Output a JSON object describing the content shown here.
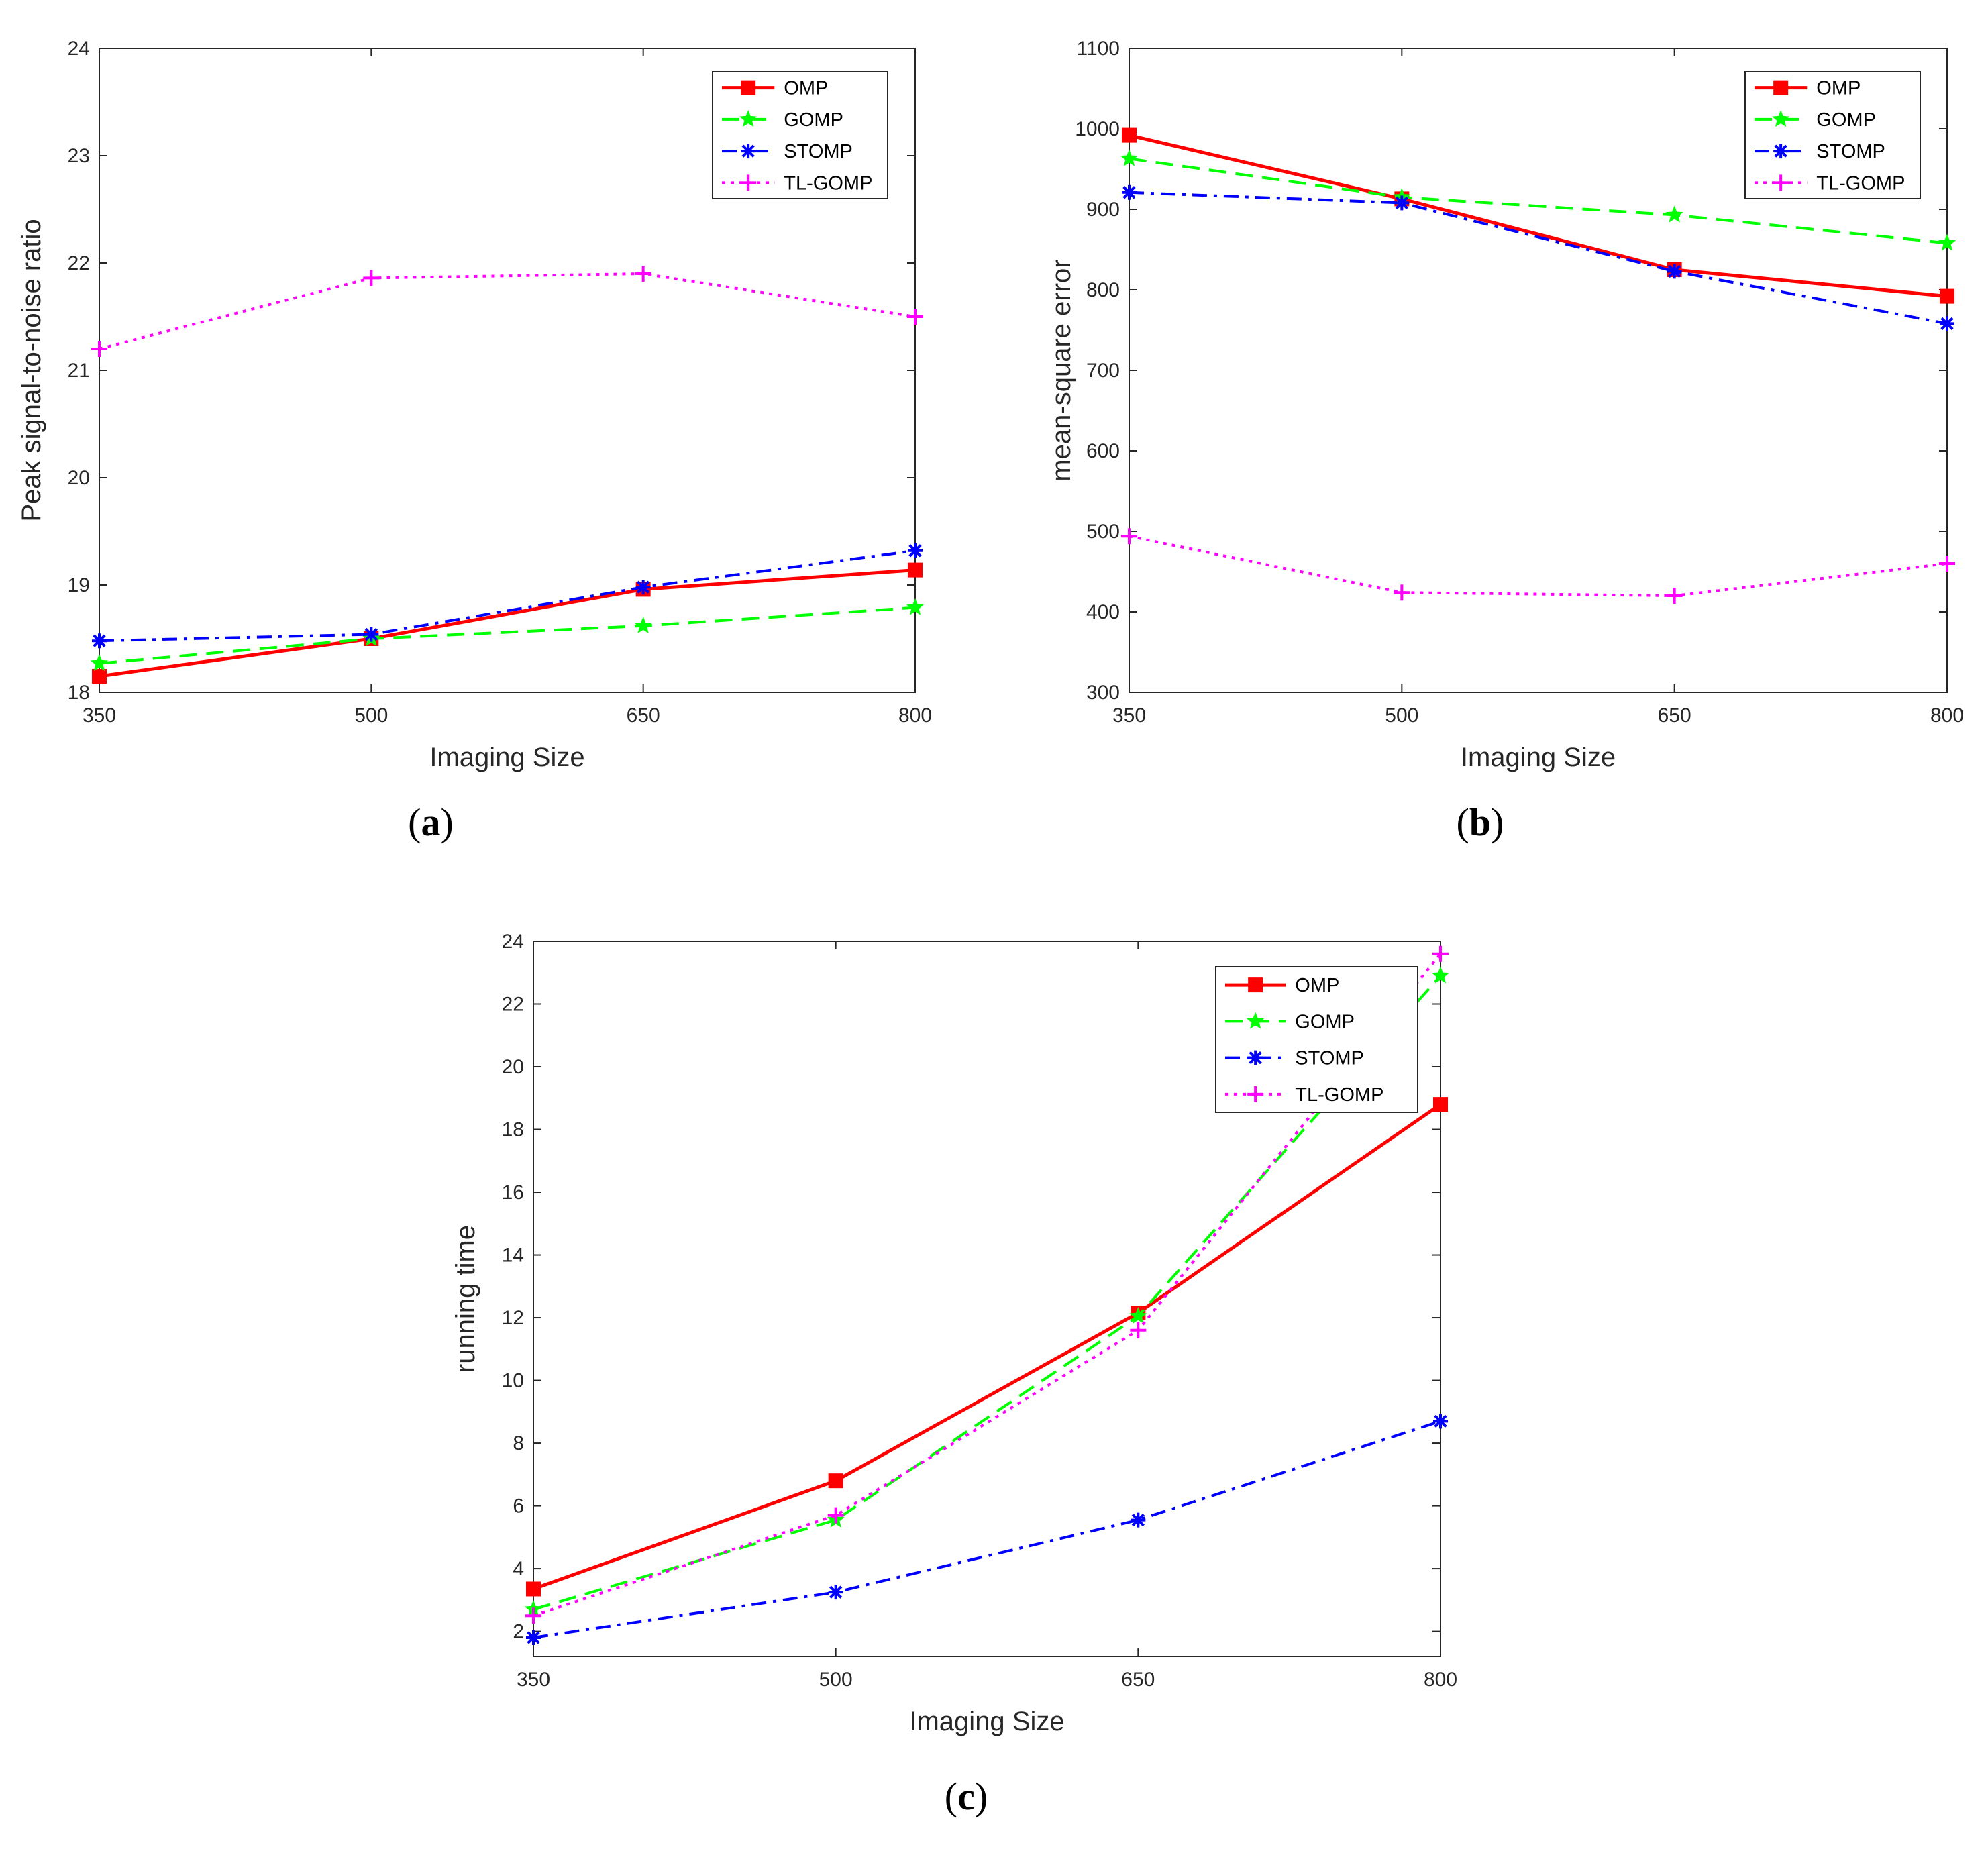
{
  "chart_data": [
    {
      "type": "line",
      "panel": "a",
      "xlabel": "Imaging Size",
      "ylabel": "Peak signal-to-noise ratio",
      "x": [
        350,
        500,
        650,
        800
      ],
      "xlim": [
        350,
        800
      ],
      "ylim": [
        18,
        24
      ],
      "xticks": [
        "350",
        "500",
        "650",
        "800"
      ],
      "yticks": [
        "18",
        "19",
        "20",
        "21",
        "22",
        "23",
        "24"
      ],
      "legend_position": "top-right",
      "series": [
        {
          "name": "OMP",
          "color": "#ff0000",
          "marker": "square",
          "style": "solid",
          "values": [
            18.15,
            18.5,
            18.96,
            19.14
          ]
        },
        {
          "name": "GOMP",
          "color": "#00ff00",
          "marker": "star",
          "style": "dashed",
          "values": [
            18.27,
            18.5,
            18.62,
            18.79
          ]
        },
        {
          "name": "STOMP",
          "color": "#0000ff",
          "marker": "asterisk",
          "style": "dashdot",
          "values": [
            18.48,
            18.54,
            18.98,
            19.32
          ]
        },
        {
          "name": "TL-GOMP",
          "color": "#ff00ff",
          "marker": "plus",
          "style": "dotted",
          "values": [
            21.2,
            21.86,
            21.9,
            21.5
          ]
        }
      ]
    },
    {
      "type": "line",
      "panel": "b",
      "xlabel": "Imaging Size",
      "ylabel": "mean-square error",
      "x": [
        350,
        500,
        650,
        800
      ],
      "xlim": [
        350,
        800
      ],
      "ylim": [
        300,
        1100
      ],
      "xticks": [
        "350",
        "500",
        "650",
        "800"
      ],
      "yticks": [
        "300",
        "400",
        "500",
        "600",
        "700",
        "800",
        "900",
        "1000",
        "1100"
      ],
      "legend_position": "top-right",
      "series": [
        {
          "name": "OMP",
          "color": "#ff0000",
          "marker": "square",
          "style": "solid",
          "values": [
            992,
            913,
            825,
            792
          ]
        },
        {
          "name": "GOMP",
          "color": "#00ff00",
          "marker": "star",
          "style": "dashed",
          "values": [
            963,
            915,
            893,
            858
          ]
        },
        {
          "name": "STOMP",
          "color": "#0000ff",
          "marker": "asterisk",
          "style": "dashdot",
          "values": [
            921,
            908,
            823,
            758
          ]
        },
        {
          "name": "TL-GOMP",
          "color": "#ff00ff",
          "marker": "plus",
          "style": "dotted",
          "values": [
            494,
            424,
            420,
            460
          ]
        }
      ]
    },
    {
      "type": "line",
      "panel": "c",
      "xlabel": "Imaging Size",
      "ylabel": "running time",
      "x": [
        350,
        500,
        650,
        800
      ],
      "xlim": [
        350,
        800
      ],
      "ylim": [
        1.2,
        24
      ],
      "xticks": [
        "350",
        "500",
        "650",
        "800"
      ],
      "yticks": [
        "2",
        "4",
        "6",
        "8",
        "10",
        "12",
        "14",
        "16",
        "18",
        "20",
        "22",
        "24"
      ],
      "legend_position": "top-right",
      "series": [
        {
          "name": "OMP",
          "color": "#ff0000",
          "marker": "square",
          "style": "solid",
          "values": [
            3.35,
            6.8,
            12.15,
            18.8
          ]
        },
        {
          "name": "GOMP",
          "color": "#00ff00",
          "marker": "star",
          "style": "dashed",
          "values": [
            2.7,
            5.55,
            12.05,
            22.9
          ]
        },
        {
          "name": "STOMP",
          "color": "#0000ff",
          "marker": "asterisk",
          "style": "dashdot",
          "values": [
            1.8,
            3.25,
            5.55,
            8.7
          ]
        },
        {
          "name": "TL-GOMP",
          "color": "#ff00ff",
          "marker": "plus",
          "style": "dotted",
          "values": [
            2.5,
            5.7,
            11.6,
            23.6
          ]
        }
      ]
    }
  ]
}
